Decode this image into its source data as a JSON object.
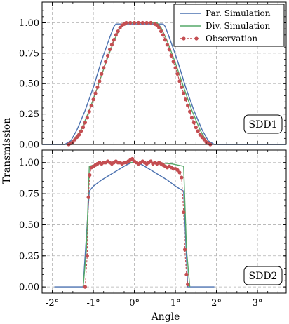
{
  "chart_data": {
    "type": "line",
    "xlabel": "Angle",
    "ylabel": "Transmission",
    "x_tick_labels": [
      "-2°",
      "-1°",
      "0°",
      "1°",
      "2°",
      "3°"
    ],
    "y_tick_labels": [
      "0.00",
      "0.25",
      "0.50",
      "0.75",
      "1.00"
    ],
    "grid": true,
    "legend": {
      "placement": "top-right",
      "entries": [
        "Par. Simulation",
        "Div. Simulation",
        "Observation"
      ]
    },
    "colors": {
      "par": "#4c72b0",
      "div": "#55a868",
      "obs": "#c44e52",
      "grid": "#b0b0b0"
    },
    "panels": [
      {
        "label": "SDD1",
        "xlim": [
          -2.25,
          3.7
        ],
        "ylim": [
          0,
          1.17
        ],
        "series": [
          {
            "name": "Par. Simulation",
            "points": [
              [
                -2.25,
                0
              ],
              [
                -1.7,
                0
              ],
              [
                -1.55,
                0.03
              ],
              [
                -1.4,
                0.12
              ],
              [
                -1.2,
                0.28
              ],
              [
                -1.0,
                0.47
              ],
              [
                -0.8,
                0.69
              ],
              [
                -0.6,
                0.88
              ],
              [
                -0.5,
                0.97
              ],
              [
                -0.45,
                0.99
              ],
              [
                0.7,
                0.99
              ],
              [
                0.75,
                0.97
              ],
              [
                0.85,
                0.88
              ],
              [
                1.05,
                0.69
              ],
              [
                1.25,
                0.47
              ],
              [
                1.45,
                0.28
              ],
              [
                1.65,
                0.12
              ],
              [
                1.8,
                0.03
              ],
              [
                1.95,
                0
              ],
              [
                3.7,
                0
              ]
            ]
          },
          {
            "name": "Div. Simulation",
            "points": [
              [
                -1.65,
                0
              ],
              [
                -1.5,
                0.03
              ],
              [
                -1.3,
                0.12
              ],
              [
                -1.1,
                0.28
              ],
              [
                -0.9,
                0.47
              ],
              [
                -0.7,
                0.67
              ],
              [
                -0.5,
                0.85
              ],
              [
                -0.35,
                0.96
              ],
              [
                -0.25,
                1.0
              ],
              [
                0.55,
                1.0
              ],
              [
                0.65,
                0.96
              ],
              [
                0.8,
                0.85
              ],
              [
                1.0,
                0.67
              ],
              [
                1.2,
                0.47
              ],
              [
                1.4,
                0.28
              ],
              [
                1.6,
                0.12
              ],
              [
                1.75,
                0.03
              ],
              [
                1.85,
                0
              ]
            ]
          },
          {
            "name": "Observation",
            "points": [
              [
                -1.6,
                0
              ],
              [
                -1.55,
                0.01
              ],
              [
                -1.5,
                0.02
              ],
              [
                -1.45,
                0.04
              ],
              [
                -1.4,
                0.06
              ],
              [
                -1.35,
                0.08
              ],
              [
                -1.3,
                0.11
              ],
              [
                -1.25,
                0.14
              ],
              [
                -1.2,
                0.18
              ],
              [
                -1.15,
                0.22
              ],
              [
                -1.1,
                0.27
              ],
              [
                -1.05,
                0.32
              ],
              [
                -1.0,
                0.37
              ],
              [
                -0.95,
                0.42
              ],
              [
                -0.9,
                0.47
              ],
              [
                -0.85,
                0.52
              ],
              [
                -0.8,
                0.58
              ],
              [
                -0.75,
                0.63
              ],
              [
                -0.7,
                0.68
              ],
              [
                -0.65,
                0.73
              ],
              [
                -0.6,
                0.78
              ],
              [
                -0.55,
                0.82
              ],
              [
                -0.5,
                0.86
              ],
              [
                -0.45,
                0.9
              ],
              [
                -0.4,
                0.93
              ],
              [
                -0.35,
                0.96
              ],
              [
                -0.3,
                0.98
              ],
              [
                -0.25,
                0.99
              ],
              [
                -0.2,
                1.0
              ],
              [
                -0.1,
                1.0
              ],
              [
                0.0,
                1.0
              ],
              [
                0.1,
                1.0
              ],
              [
                0.2,
                1.0
              ],
              [
                0.3,
                1.0
              ],
              [
                0.4,
                1.0
              ],
              [
                0.5,
                0.99
              ],
              [
                0.55,
                0.98
              ],
              [
                0.6,
                0.96
              ],
              [
                0.65,
                0.93
              ],
              [
                0.7,
                0.9
              ],
              [
                0.75,
                0.86
              ],
              [
                0.8,
                0.82
              ],
              [
                0.85,
                0.78
              ],
              [
                0.9,
                0.73
              ],
              [
                0.95,
                0.68
              ],
              [
                1.0,
                0.63
              ],
              [
                1.05,
                0.58
              ],
              [
                1.1,
                0.52
              ],
              [
                1.15,
                0.47
              ],
              [
                1.2,
                0.42
              ],
              [
                1.25,
                0.37
              ],
              [
                1.3,
                0.32
              ],
              [
                1.35,
                0.27
              ],
              [
                1.4,
                0.22
              ],
              [
                1.45,
                0.18
              ],
              [
                1.5,
                0.14
              ],
              [
                1.55,
                0.11
              ],
              [
                1.6,
                0.08
              ],
              [
                1.65,
                0.06
              ],
              [
                1.7,
                0.04
              ],
              [
                1.75,
                0.02
              ],
              [
                1.8,
                0.01
              ],
              [
                1.85,
                0
              ]
            ]
          }
        ]
      },
      {
        "label": "SDD2",
        "xlim": [
          -2.25,
          3.7
        ],
        "ylim": [
          -0.05,
          1.1
        ],
        "series": [
          {
            "name": "Par. Simulation",
            "points": [
              [
                -1.95,
                0
              ],
              [
                -1.25,
                0
              ],
              [
                -1.1,
                0.77
              ],
              [
                -1.0,
                0.81
              ],
              [
                -0.8,
                0.86
              ],
              [
                -0.6,
                0.9
              ],
              [
                -0.4,
                0.94
              ],
              [
                -0.2,
                0.98
              ],
              [
                0,
                1.01
              ],
              [
                0.2,
                0.98
              ],
              [
                0.4,
                0.94
              ],
              [
                0.6,
                0.9
              ],
              [
                0.8,
                0.86
              ],
              [
                1.0,
                0.81
              ],
              [
                1.2,
                0.77
              ],
              [
                1.3,
                0
              ],
              [
                1.95,
                0
              ]
            ]
          },
          {
            "name": "Div. Simulation",
            "points": [
              [
                -1.25,
                0
              ],
              [
                -1.17,
                0.3
              ],
              [
                -1.1,
                0.97
              ],
              [
                -0.9,
                0.99
              ],
              [
                -0.5,
                1.0
              ],
              [
                0,
                1.0
              ],
              [
                0.5,
                1.0
              ],
              [
                0.9,
                0.99
              ],
              [
                1.2,
                0.97
              ],
              [
                1.27,
                0.3
              ],
              [
                1.35,
                0
              ]
            ]
          },
          {
            "name": "Observation",
            "points": [
              [
                -1.2,
                0
              ],
              [
                -1.15,
                0.25
              ],
              [
                -1.12,
                0.72
              ],
              [
                -1.09,
                0.9
              ],
              [
                -1.05,
                0.96
              ],
              [
                -1.0,
                0.97
              ],
              [
                -0.95,
                0.98
              ],
              [
                -0.9,
                0.99
              ],
              [
                -0.85,
                1.0
              ],
              [
                -0.8,
                0.99
              ],
              [
                -0.75,
                1.0
              ],
              [
                -0.7,
                1.0
              ],
              [
                -0.65,
                1.01
              ],
              [
                -0.6,
                1.0
              ],
              [
                -0.55,
                0.99
              ],
              [
                -0.5,
                1.0
              ],
              [
                -0.45,
                1.01
              ],
              [
                -0.4,
                1.0
              ],
              [
                -0.35,
                1.0
              ],
              [
                -0.3,
                0.99
              ],
              [
                -0.25,
                1.0
              ],
              [
                -0.2,
                1.0
              ],
              [
                -0.15,
                1.01
              ],
              [
                -0.1,
                1.02
              ],
              [
                -0.05,
                1.03
              ],
              [
                0.0,
                1.01
              ],
              [
                0.05,
                1.0
              ],
              [
                0.1,
                0.99
              ],
              [
                0.15,
                1.0
              ],
              [
                0.2,
                1.01
              ],
              [
                0.25,
                1.0
              ],
              [
                0.3,
                0.99
              ],
              [
                0.35,
                1.0
              ],
              [
                0.4,
                1.01
              ],
              [
                0.45,
                0.99
              ],
              [
                0.5,
                1.0
              ],
              [
                0.55,
                0.99
              ],
              [
                0.6,
                1.0
              ],
              [
                0.65,
                0.99
              ],
              [
                0.7,
                0.98
              ],
              [
                0.75,
                0.97
              ],
              [
                0.8,
                0.96
              ],
              [
                0.85,
                0.97
              ],
              [
                0.9,
                0.96
              ],
              [
                0.95,
                0.95
              ],
              [
                1.0,
                0.95
              ],
              [
                1.05,
                0.94
              ],
              [
                1.1,
                0.92
              ],
              [
                1.15,
                0.88
              ],
              [
                1.2,
                0.6
              ],
              [
                1.23,
                0.3
              ],
              [
                1.27,
                0.1
              ],
              [
                1.3,
                0.02
              ]
            ]
          }
        ]
      }
    ]
  }
}
